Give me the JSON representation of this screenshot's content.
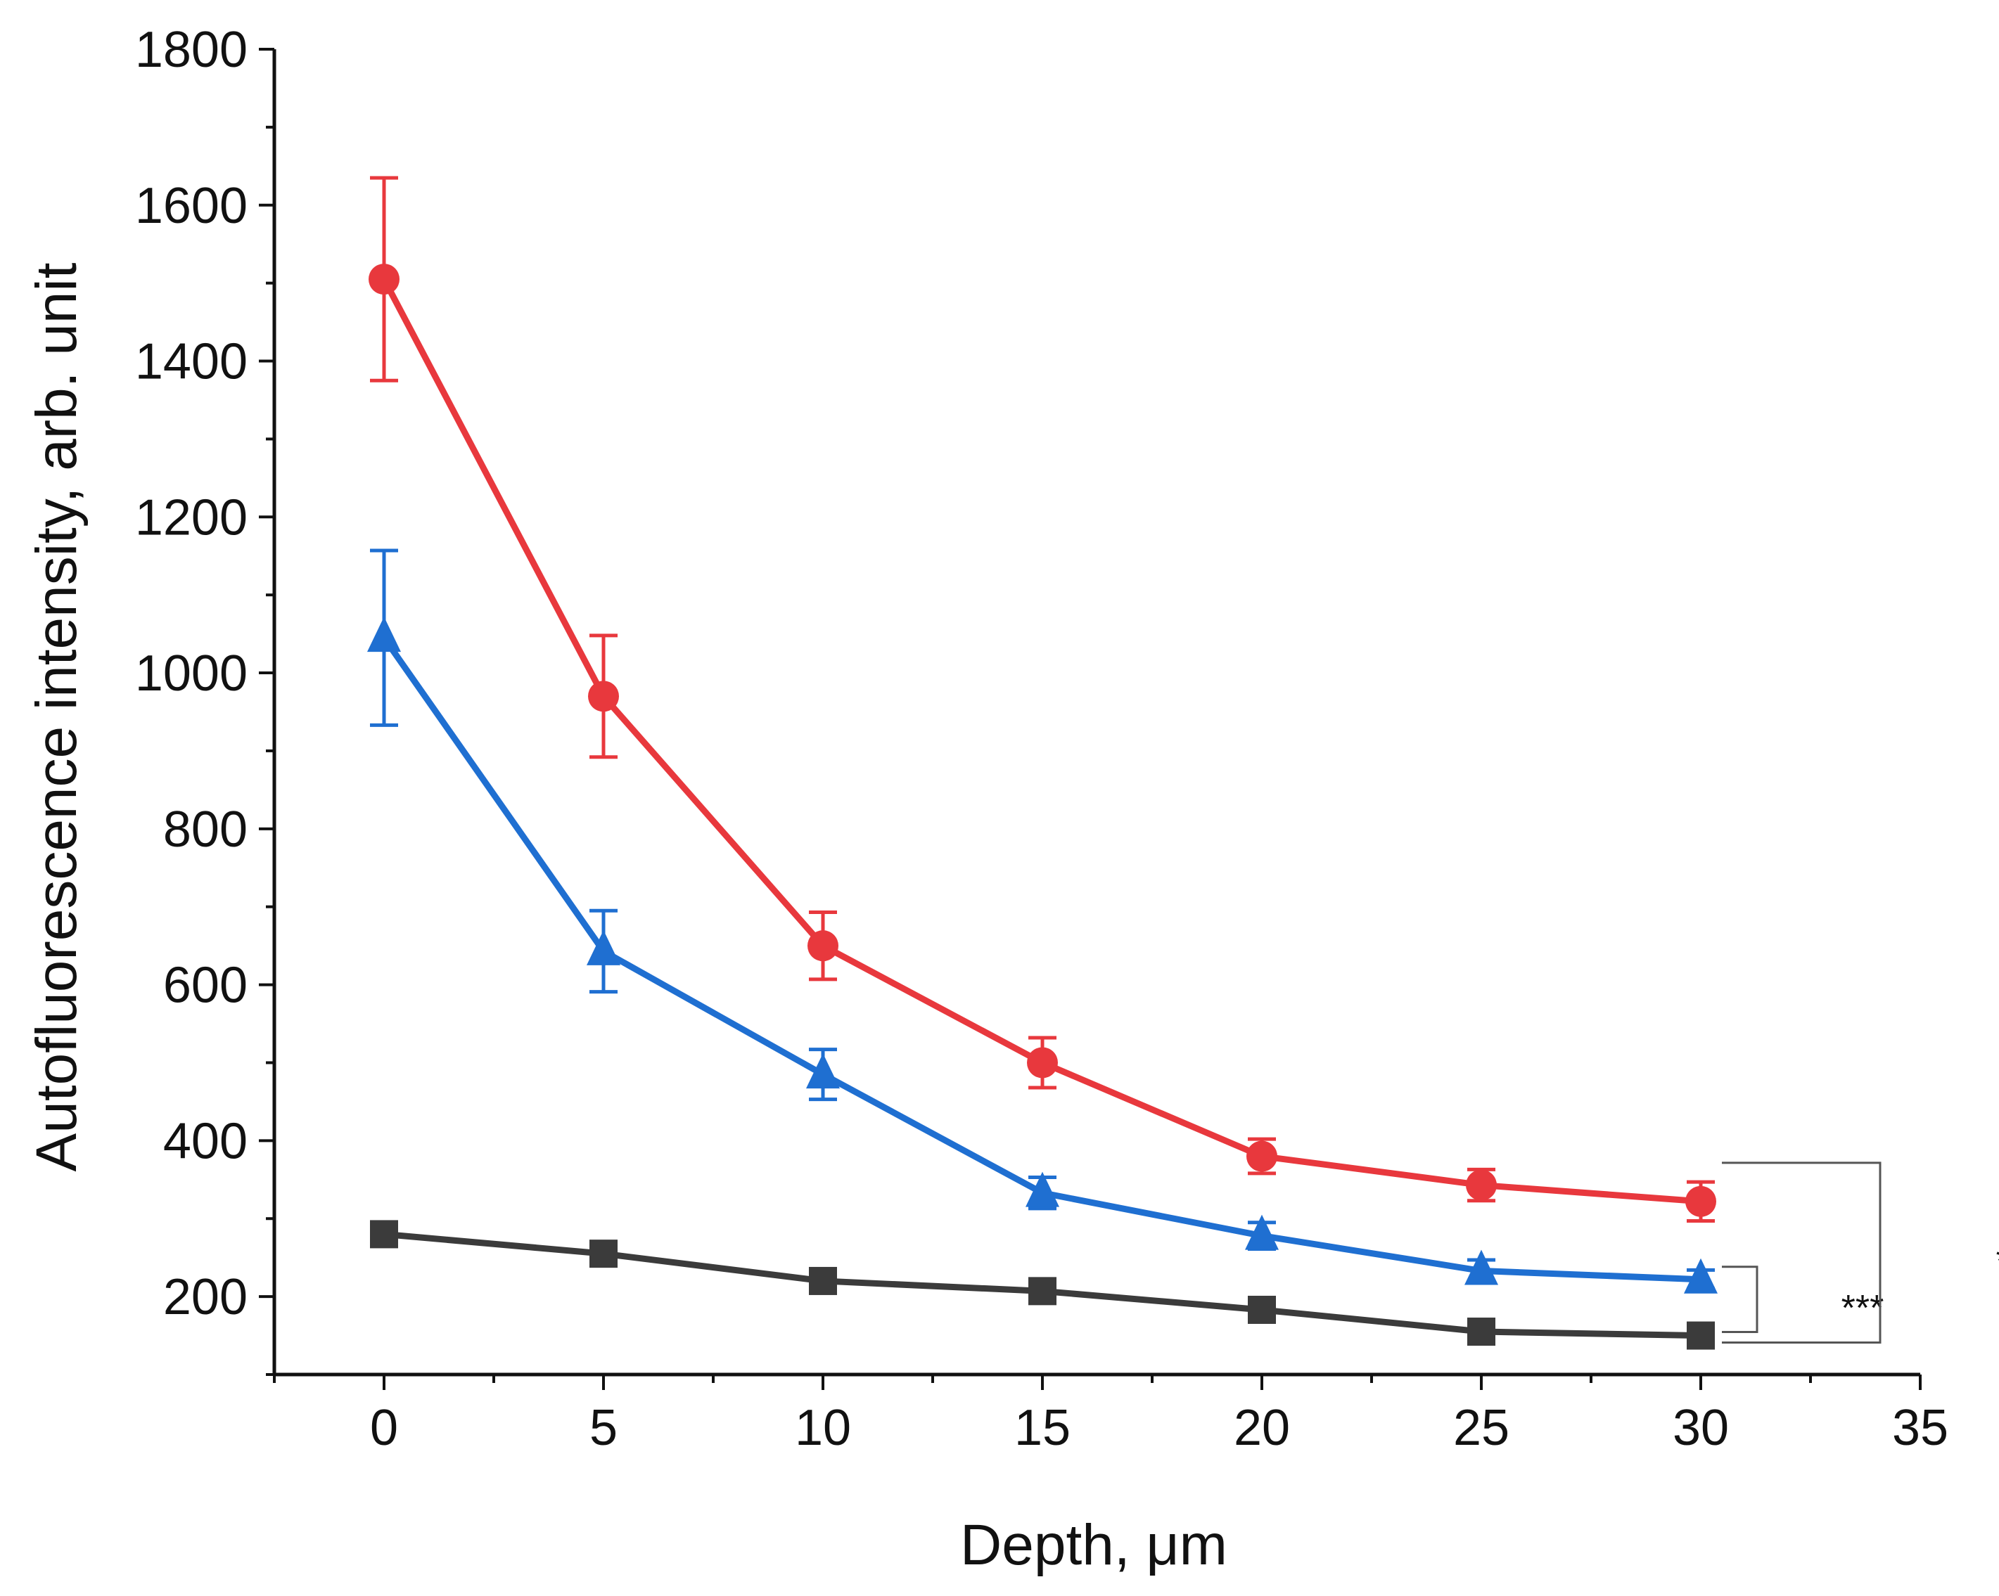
{
  "chart_data": {
    "type": "line",
    "title": "",
    "xlabel": "Depth, μm",
    "ylabel": "Autofluorescence intensity, arb. unit",
    "xlim": [
      -2.5,
      35
    ],
    "ylim": [
      100,
      1800
    ],
    "xticks": [
      0,
      5,
      10,
      15,
      20,
      25,
      30,
      35
    ],
    "yticks": [
      200,
      400,
      600,
      800,
      1000,
      1200,
      1400,
      1600,
      1800
    ],
    "x": [
      0,
      5,
      10,
      15,
      20,
      25,
      30
    ],
    "grid": false,
    "series": [
      {
        "name": "red",
        "color": "#e8383d",
        "marker": "circle",
        "values": [
          1505,
          970,
          650,
          500,
          380,
          343,
          322
        ],
        "errors": [
          130,
          78,
          43,
          32,
          22,
          20,
          25
        ]
      },
      {
        "name": "blue",
        "color": "#1f6fd1",
        "marker": "triangle",
        "values": [
          1045,
          643,
          485,
          333,
          278,
          233,
          222
        ],
        "errors": [
          112,
          52,
          32,
          20,
          17,
          14,
          12
        ]
      },
      {
        "name": "black",
        "color": "#3b3b3b",
        "marker": "square",
        "values": [
          280,
          255,
          220,
          207,
          183,
          155,
          150
        ],
        "errors": [
          12,
          10,
          9,
          9,
          9,
          8,
          7
        ]
      }
    ],
    "annotations": [
      {
        "text": "***",
        "between": [
          "blue",
          "black"
        ]
      },
      {
        "text": "***",
        "between": [
          "red",
          "black"
        ]
      }
    ]
  }
}
